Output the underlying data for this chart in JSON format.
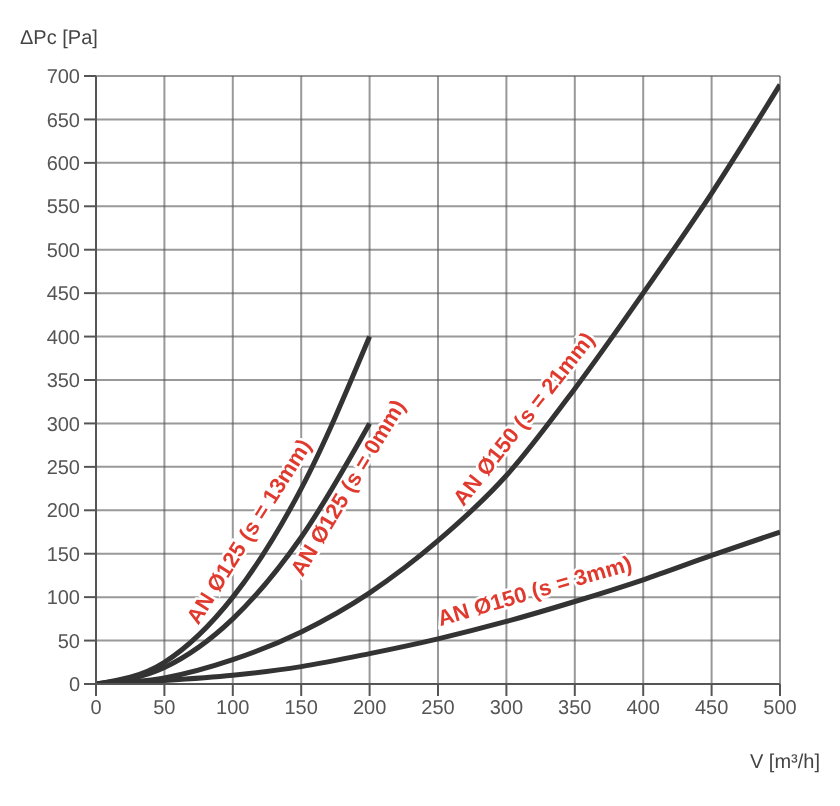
{
  "chart_data": {
    "type": "line",
    "ylabel": "ΔPc [Pa]",
    "xlabel": "V [m³/h]",
    "xlim": [
      0,
      500
    ],
    "ylim": [
      0,
      700
    ],
    "xticks": [
      0,
      50,
      100,
      150,
      200,
      250,
      300,
      350,
      400,
      450,
      500
    ],
    "yticks": [
      0,
      50,
      100,
      150,
      200,
      250,
      300,
      350,
      400,
      450,
      500,
      550,
      600,
      650,
      700
    ],
    "grid": true,
    "marker": "none",
    "line_style": "solid",
    "series": [
      {
        "name": "AN Ø125 (s = 13mm)",
        "color": "#333333",
        "x": [
          0,
          50,
          100,
          150,
          200
        ],
        "values": [
          0,
          25,
          100,
          225,
          400
        ]
      },
      {
        "name": "AN Ø125 (s = 0mm)",
        "color": "#333333",
        "x": [
          0,
          50,
          100,
          150,
          200
        ],
        "values": [
          0,
          19,
          75,
          169,
          300
        ]
      },
      {
        "name": "AN Ø150 (s = 21mm)",
        "color": "#333333",
        "x": [
          0,
          50,
          100,
          150,
          200,
          250,
          300,
          350,
          400,
          450,
          500
        ],
        "values": [
          0,
          7,
          28,
          60,
          105,
          165,
          240,
          340,
          450,
          565,
          690
        ]
      },
      {
        "name": "AN Ø150 (s = 3mm)",
        "color": "#333333",
        "x": [
          0,
          50,
          100,
          150,
          200,
          250,
          300,
          350,
          400,
          450,
          500
        ],
        "values": [
          0,
          4,
          10,
          20,
          35,
          52,
          72,
          95,
          120,
          148,
          175
        ]
      }
    ]
  }
}
